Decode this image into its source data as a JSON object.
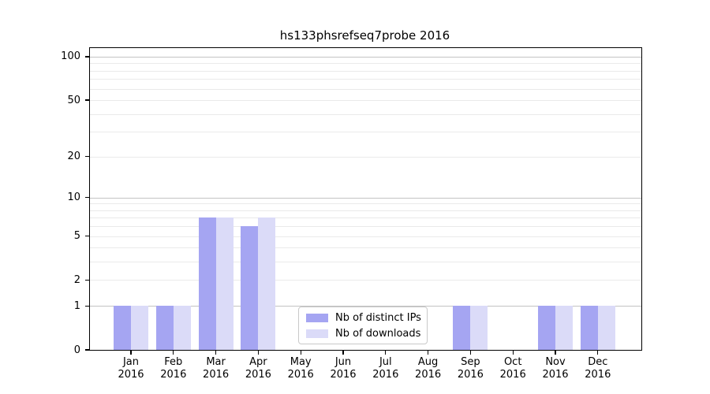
{
  "figure": {
    "title": "hs133phsrefseq7probe 2016"
  },
  "chart_data": {
    "type": "bar",
    "title": "hs133phsrefseq7probe 2016",
    "categories": [
      "Jan 2016",
      "Feb 2016",
      "Mar 2016",
      "Apr 2016",
      "May 2016",
      "Jun 2016",
      "Jul 2016",
      "Aug 2016",
      "Sep 2016",
      "Oct 2016",
      "Nov 2016",
      "Dec 2016"
    ],
    "series": [
      {
        "name": "Nb of distinct IPs",
        "color": "#a5a5f2",
        "values": [
          1,
          1,
          7,
          6,
          0,
          0,
          0,
          0,
          1,
          0,
          1,
          1
        ]
      },
      {
        "name": "Nb of downloads",
        "color": "#dbdbf8",
        "values": [
          1,
          1,
          7,
          7,
          0,
          0,
          0,
          0,
          1,
          0,
          1,
          1
        ]
      }
    ],
    "xlabel": "",
    "ylabel": "",
    "yscale": "log10(value+1)",
    "yticks": [
      0,
      1,
      2,
      5,
      10,
      20,
      50,
      100
    ],
    "ylim": [
      0,
      115
    ],
    "grid": "horizontal",
    "legend_position": "inside-bottom-center"
  },
  "colors": {
    "bar_distinct_ips": "#a5a5f2",
    "bar_downloads": "#dbdbf8",
    "grid_major": "#c3c3c3",
    "grid_minor": "#eaeaea",
    "axis": "#000000",
    "legend_border": "#c9c9c9",
    "background": "#ffffff",
    "text": "#000000"
  }
}
